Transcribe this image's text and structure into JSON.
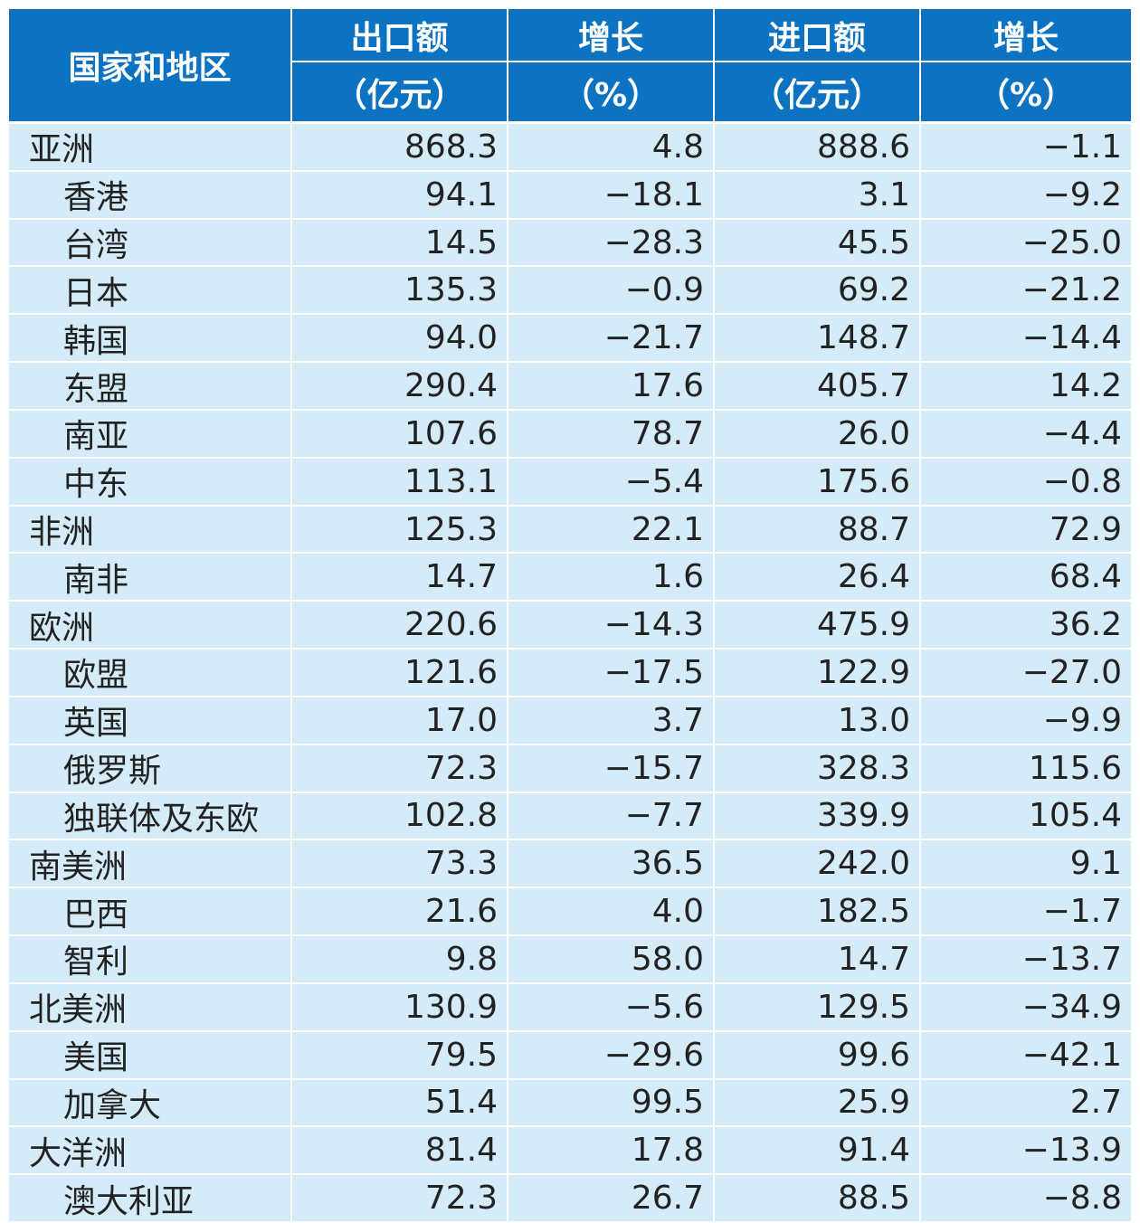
{
  "header": {
    "first_column": "国家和地区",
    "columns": [
      {
        "name": "出口额",
        "unit": "（亿元）"
      },
      {
        "name": "增长",
        "unit": "（%）"
      },
      {
        "name": "进口额",
        "unit": "（亿元）"
      },
      {
        "name": "增长",
        "unit": "（%）"
      }
    ]
  },
  "table": {
    "groups": [
      {
        "region": {
          "name": "亚洲",
          "values": [
            "868.3",
            "4.8",
            "888.6",
            "−1.1"
          ]
        },
        "members": [
          {
            "name": "香港",
            "values": [
              "94.1",
              "−18.1",
              "3.1",
              "−9.2"
            ]
          },
          {
            "name": "台湾",
            "values": [
              "14.5",
              "−28.3",
              "45.5",
              "−25.0"
            ]
          },
          {
            "name": "日本",
            "values": [
              "135.3",
              "−0.9",
              "69.2",
              "−21.2"
            ]
          },
          {
            "name": "韩国",
            "values": [
              "94.0",
              "−21.7",
              "148.7",
              "−14.4"
            ]
          },
          {
            "name": "东盟",
            "values": [
              "290.4",
              "17.6",
              "405.7",
              "14.2"
            ]
          },
          {
            "name": "南亚",
            "values": [
              "107.6",
              "78.7",
              "26.0",
              "−4.4"
            ]
          },
          {
            "name": "中东",
            "values": [
              "113.1",
              "−5.4",
              "175.6",
              "−0.8"
            ]
          }
        ]
      },
      {
        "region": {
          "name": "非洲",
          "values": [
            "125.3",
            "22.1",
            "88.7",
            "72.9"
          ]
        },
        "members": [
          {
            "name": "南非",
            "values": [
              "14.7",
              "1.6",
              "26.4",
              "68.4"
            ]
          }
        ]
      },
      {
        "region": {
          "name": "欧洲",
          "values": [
            "220.6",
            "−14.3",
            "475.9",
            "36.2"
          ]
        },
        "members": [
          {
            "name": "欧盟",
            "values": [
              "121.6",
              "−17.5",
              "122.9",
              "−27.0"
            ]
          },
          {
            "name": "英国",
            "values": [
              "17.0",
              "3.7",
              "13.0",
              "−9.9"
            ]
          },
          {
            "name": "俄罗斯",
            "values": [
              "72.3",
              "−15.7",
              "328.3",
              "115.6"
            ]
          },
          {
            "name": "独联体及东欧",
            "values": [
              "102.8",
              "−7.7",
              "339.9",
              "105.4"
            ]
          }
        ]
      },
      {
        "region": {
          "name": "南美洲",
          "values": [
            "73.3",
            "36.5",
            "242.0",
            "9.1"
          ]
        },
        "members": [
          {
            "name": "巴西",
            "values": [
              "21.6",
              "4.0",
              "182.5",
              "−1.7"
            ]
          },
          {
            "name": "智利",
            "values": [
              "9.8",
              "58.0",
              "14.7",
              "−13.7"
            ]
          }
        ]
      },
      {
        "region": {
          "name": "北美洲",
          "values": [
            "130.9",
            "−5.6",
            "129.5",
            "−34.9"
          ]
        },
        "members": [
          {
            "name": "美国",
            "values": [
              "79.5",
              "−29.6",
              "99.6",
              "−42.1"
            ]
          },
          {
            "name": "加拿大",
            "values": [
              "51.4",
              "99.5",
              "25.9",
              "2.7"
            ]
          }
        ]
      },
      {
        "region": {
          "name": "大洋洲",
          "values": [
            "81.4",
            "17.8",
            "91.4",
            "−13.9"
          ]
        },
        "members": [
          {
            "name": "澳大利亚",
            "values": [
              "72.3",
              "26.7",
              "88.5",
              "−8.8"
            ]
          }
        ]
      }
    ]
  }
}
